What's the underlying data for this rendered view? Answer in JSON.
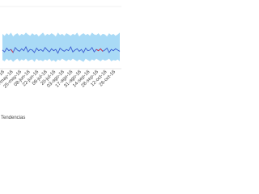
{
  "chart_data": {
    "type": "line",
    "title": "Tendencias",
    "categories": [
      null,
      "27-abr-16",
      null,
      null,
      null,
      "11-may-16",
      null,
      null,
      null,
      "25-may-16",
      null,
      null,
      null,
      "08-jun-16",
      null,
      null,
      null,
      "22-jun-16",
      null,
      null,
      null,
      "06-jul-16",
      null,
      null,
      null,
      "20-jul-16",
      null,
      null,
      null,
      "03-ago-16",
      null,
      null,
      null,
      "17-ago-16",
      null,
      null,
      null,
      "31-ago-16",
      null,
      null,
      null,
      "14-sep-16",
      null,
      null,
      null,
      "28-sep-16",
      null,
      null,
      null,
      "12-oct-16",
      null,
      null,
      null,
      "26-oct-16",
      null,
      null
    ],
    "ylim": [
      0,
      100
    ],
    "band": {
      "color": "#a9daf6",
      "upper": [
        56,
        53,
        57,
        54,
        58,
        52,
        55,
        57,
        53,
        56,
        54,
        58,
        55,
        53,
        57,
        54,
        56,
        52,
        55,
        58,
        53,
        56,
        54,
        57,
        55,
        52,
        58,
        54,
        56,
        53,
        57,
        55,
        53,
        56,
        54,
        58,
        52,
        55,
        57,
        54,
        56,
        53,
        58,
        55,
        54,
        57,
        53,
        56,
        55,
        52,
        57,
        54,
        56,
        53,
        55,
        58
      ],
      "lower": [
        14,
        12,
        16,
        13,
        15,
        11,
        14,
        16,
        12,
        15,
        13,
        16,
        12,
        14,
        15,
        11,
        16,
        13,
        14,
        12,
        15,
        13,
        16,
        12,
        14,
        11,
        15,
        13,
        16,
        14,
        12,
        15,
        13,
        16,
        14,
        12,
        15,
        13,
        11,
        16,
        14,
        12,
        15,
        13,
        16,
        14,
        12,
        15,
        13,
        14,
        16,
        12,
        14,
        13,
        15,
        12
      ]
    },
    "series": [
      {
        "color": "#3a5bd0",
        "values": [
          30,
          27,
          33,
          29,
          31,
          26,
          34,
          30,
          28,
          32,
          29,
          35,
          27,
          31,
          30,
          26,
          33,
          29,
          31,
          28,
          34,
          30,
          27,
          32,
          29,
          31,
          25,
          33,
          30,
          28,
          31,
          29,
          35,
          27,
          30,
          32,
          28,
          31,
          26,
          33,
          29,
          30,
          34,
          27,
          31,
          29,
          32,
          28,
          30,
          33,
          26,
          31,
          29,
          32,
          30,
          28
        ]
      },
      {
        "color": "#e0303a",
        "values": [
          null,
          null,
          null,
          null,
          31,
          26,
          null,
          null,
          null,
          null,
          null,
          null,
          null,
          null,
          null,
          null,
          null,
          null,
          null,
          null,
          null,
          null,
          null,
          null,
          null,
          null,
          null,
          null,
          null,
          null,
          null,
          null,
          null,
          null,
          null,
          null,
          null,
          null,
          null,
          null,
          null,
          null,
          null,
          null,
          31,
          29,
          32,
          28,
          null,
          null,
          null,
          null,
          null,
          null,
          null,
          null
        ]
      }
    ]
  }
}
